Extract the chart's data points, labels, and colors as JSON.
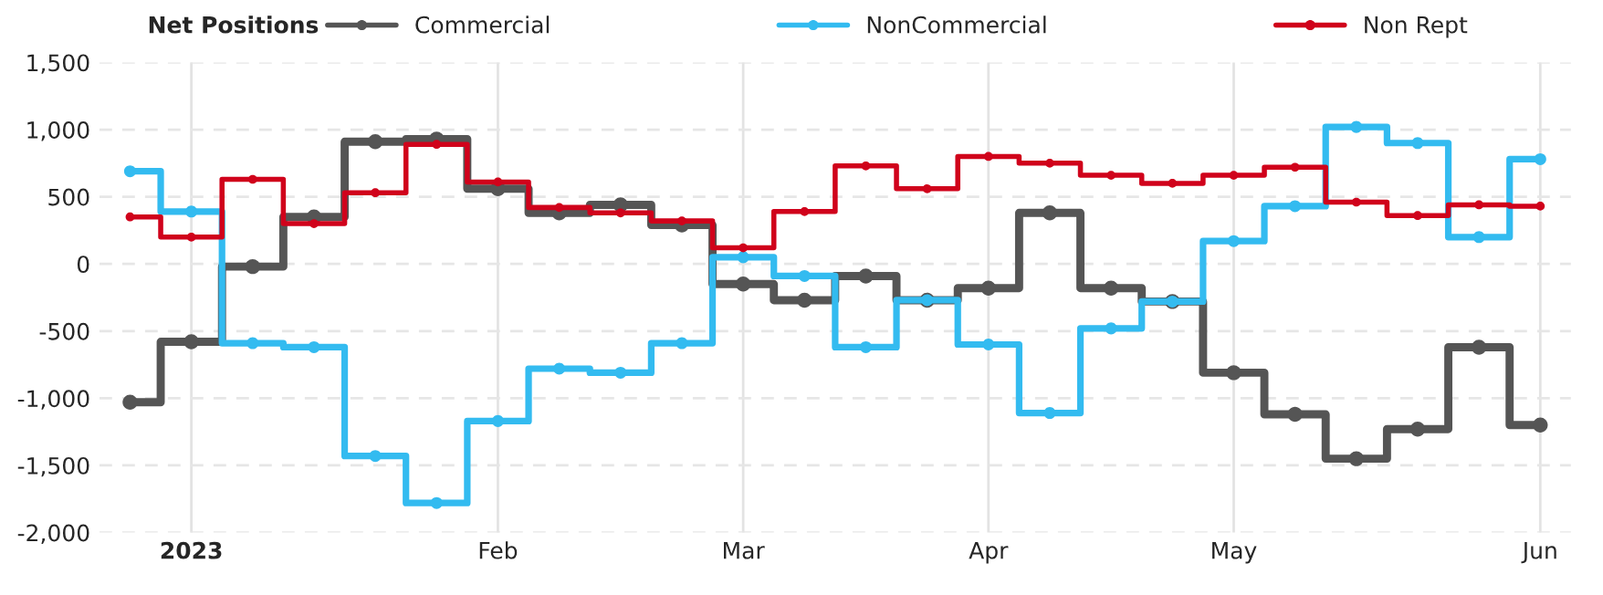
{
  "chart_data": {
    "type": "step",
    "legend_title": "Net Positions",
    "categories": [
      null,
      "2023",
      null,
      null,
      null,
      null,
      "Feb",
      null,
      null,
      null,
      "Mar",
      null,
      null,
      null,
      "Apr",
      null,
      null,
      null,
      "May",
      null,
      null,
      null,
      null,
      "Jun"
    ],
    "series": [
      {
        "name": "Commercial",
        "color": "#555555",
        "values": [
          -1030,
          -580,
          -20,
          350,
          910,
          930,
          560,
          380,
          440,
          290,
          -150,
          -270,
          -90,
          -270,
          -180,
          380,
          -180,
          -280,
          -810,
          -1120,
          -1450,
          -1230,
          -620,
          -1200
        ]
      },
      {
        "name": "NonCommercial",
        "color": "#33bbf0",
        "values": [
          690,
          390,
          -590,
          -620,
          -1430,
          -1780,
          -1170,
          -780,
          -810,
          -590,
          50,
          -90,
          -620,
          -270,
          -600,
          -1110,
          -480,
          -280,
          170,
          430,
          1020,
          900,
          200,
          780
        ]
      },
      {
        "name": "Non Rept",
        "color": "#d0021b",
        "values": [
          350,
          200,
          630,
          300,
          530,
          890,
          610,
          420,
          380,
          320,
          120,
          390,
          730,
          560,
          800,
          750,
          660,
          600,
          660,
          720,
          460,
          360,
          440,
          430
        ]
      }
    ],
    "ylim": [
      -2000,
      1500
    ],
    "yticks": [
      {
        "value": -2000,
        "label": "-2,000"
      },
      {
        "value": -1500,
        "label": "-1,500"
      },
      {
        "value": -1000,
        "label": "-1,000"
      },
      {
        "value": -500,
        "label": "-500"
      },
      0,
      500,
      {
        "value": 1000,
        "label": "1,000"
      },
      {
        "value": 1500,
        "label": "1,500"
      }
    ],
    "grid": true,
    "legend": "top",
    "marker": "circle",
    "line_style": "solid"
  }
}
